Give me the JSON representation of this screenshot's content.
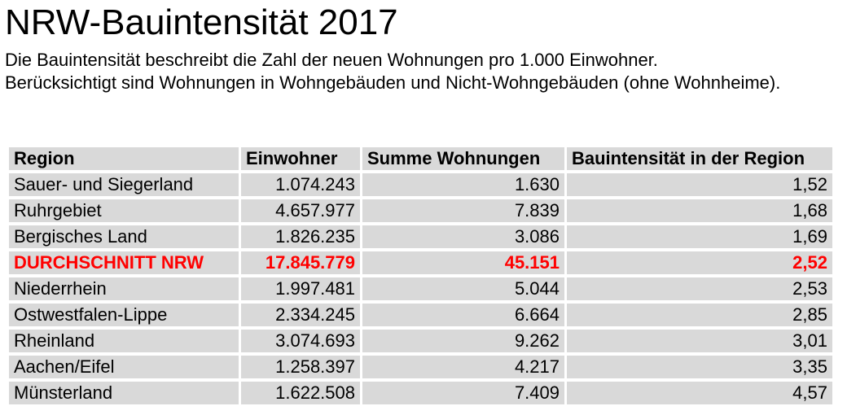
{
  "title": "NRW-Bauintensität 2017",
  "description": [
    "Die Bauintensität beschreibt die Zahl der neuen Wohnungen pro 1.000 Einwohner.",
    "Berücksichtigt sind Wohnungen in Wohngebäuden und Nicht-Wohngebäuden (ohne Wohnheime)."
  ],
  "table": {
    "headers": [
      "Region",
      "Einwohner",
      "Summe Wohnungen",
      "Bauintensität in der Region"
    ],
    "rows": [
      [
        "Sauer- und Siegerland",
        "1.074.243",
        "1.630",
        "1,52"
      ],
      [
        "Ruhrgebiet",
        "4.657.977",
        "7.839",
        "1,68"
      ],
      [
        "Bergisches Land",
        "1.826.235",
        "3.086",
        "1,69"
      ],
      [
        "DURCHSCHNITT NRW",
        "17.845.779",
        "45.151",
        "2,52"
      ],
      [
        "Niederrhein",
        "1.997.481",
        "5.044",
        "2,53"
      ],
      [
        "Ostwestfalen-Lippe",
        "2.334.245",
        "6.664",
        "2,85"
      ],
      [
        "Rheinland",
        "3.074.693",
        "9.262",
        "3,01"
      ],
      [
        "Aachen/Eifel",
        "1.258.397",
        "4.217",
        "3,35"
      ],
      [
        "Münsterland",
        "1.622.508",
        "7.409",
        "4,57"
      ]
    ],
    "highlight_color": "#ff0000",
    "cell_background": "#d9d9d9"
  }
}
